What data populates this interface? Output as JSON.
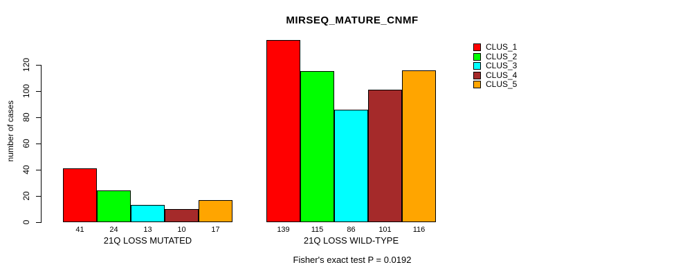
{
  "chart_data": {
    "type": "bar",
    "title": "MIRSEQ_MATURE_CNMF",
    "ylabel": "number of cases",
    "xlabel": "",
    "caption": "Fisher's exact test P = 0.0192",
    "ylim": [
      0,
      120
    ],
    "yticks": [
      0,
      20,
      40,
      60,
      80,
      100,
      120
    ],
    "grid": false,
    "legend_position": "top-right",
    "bar_border_color": "#000000",
    "categories": [
      "21Q LOSS MUTATED",
      "21Q LOSS WILD-TYPE"
    ],
    "series": [
      {
        "name": "CLUS_1",
        "color": "#FF0000",
        "values": [
          41,
          139
        ]
      },
      {
        "name": "CLUS_2",
        "color": "#00FF00",
        "values": [
          24,
          115
        ]
      },
      {
        "name": "CLUS_3",
        "color": "#00FFFF",
        "values": [
          13,
          86
        ]
      },
      {
        "name": "CLUS_4",
        "color": "#A52A2A",
        "values": [
          10,
          101
        ]
      },
      {
        "name": "CLUS_5",
        "color": "#FFA500",
        "values": [
          17,
          116
        ]
      }
    ]
  }
}
